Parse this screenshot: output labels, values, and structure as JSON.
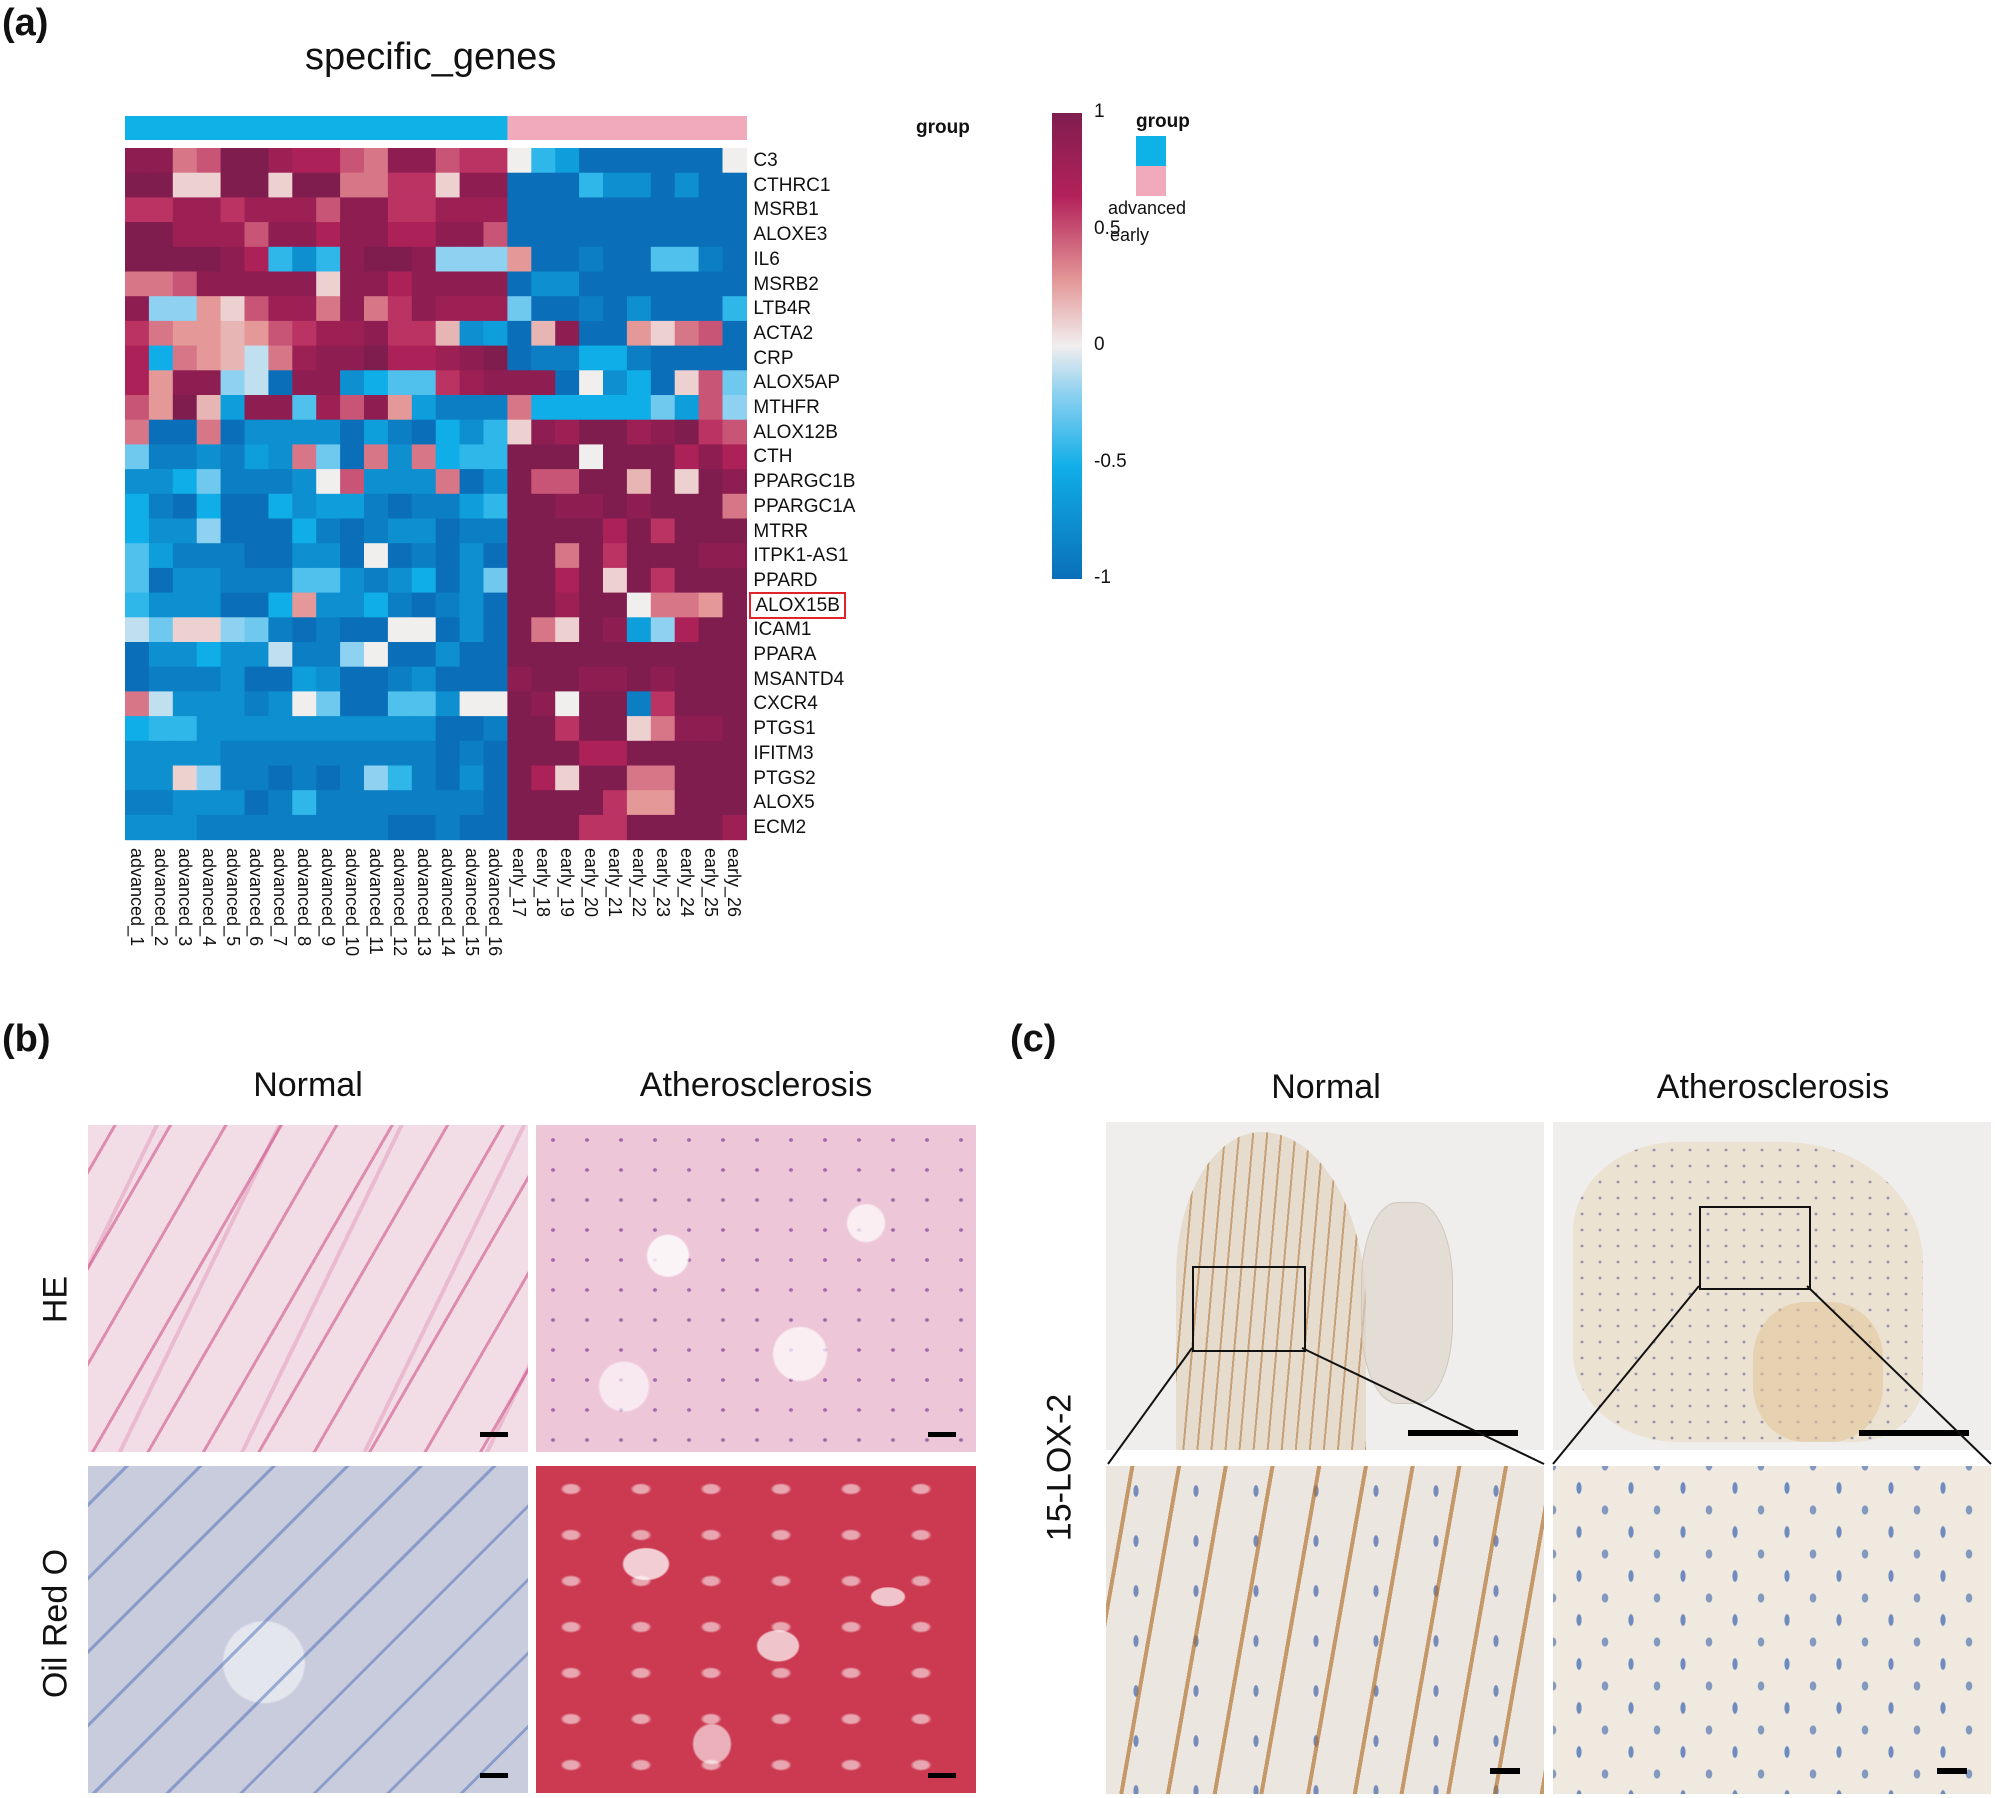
{
  "panel_labels": {
    "a": "(a)",
    "b": "(b)",
    "c": "(c)"
  },
  "heatmap": {
    "title": "specific_genes",
    "annotation_label": "group",
    "legend_title": "group",
    "legend_entries": [
      {
        "label": "advanced",
        "color": "#0fb2e6"
      },
      {
        "label": "early",
        "color": "#f0aabb"
      }
    ],
    "colorbar_ticks": [
      "1",
      "0.5",
      "0",
      "-0.5",
      "-1"
    ],
    "highlighted_gene": "ALOX15B"
  },
  "chart_data": {
    "type": "heatmap",
    "title": "specific_genes",
    "x": [
      "advanced_1",
      "advanced_2",
      "advanced_3",
      "advanced_4",
      "advanced_5",
      "advanced_6",
      "advanced_7",
      "advanced_8",
      "advanced_9",
      "advanced_10",
      "advanced_11",
      "advanced_12",
      "advanced_13",
      "advanced_14",
      "advanced_15",
      "advanced_16",
      "early_17",
      "early_18",
      "early_19",
      "early_20",
      "early_21",
      "early_22",
      "early_23",
      "early_24",
      "early_25",
      "early_26"
    ],
    "groups": [
      "advanced",
      "advanced",
      "advanced",
      "advanced",
      "advanced",
      "advanced",
      "advanced",
      "advanced",
      "advanced",
      "advanced",
      "advanced",
      "advanced",
      "advanced",
      "advanced",
      "advanced",
      "advanced",
      "early",
      "early",
      "early",
      "early",
      "early",
      "early",
      "early",
      "early",
      "early",
      "early"
    ],
    "y": [
      "C3",
      "CTHRC1",
      "MSRB1",
      "ALOXE3",
      "IL6",
      "MSRB2",
      "LTB4R",
      "ACTA2",
      "CRP",
      "ALOX5AP",
      "MTHFR",
      "ALOX12B",
      "CTH",
      "PPARGC1B",
      "PPARGC1A",
      "MTRR",
      "ITPK1-AS1",
      "PPARD",
      "ALOX15B",
      "ICAM1",
      "PPARA",
      "MSANTD4",
      "CXCR4",
      "PTGS1",
      "IFITM3",
      "PTGS2",
      "ALOX5",
      "ECM2"
    ],
    "zlim": [
      -1,
      1
    ],
    "values": [
      [
        0.9,
        0.9,
        0.4,
        0.5,
        1,
        1,
        0.8,
        0.7,
        0.7,
        0.5,
        0.4,
        0.9,
        0.9,
        0.5,
        0.6,
        0.6,
        0.0,
        -0.5,
        -0.7,
        -1,
        -1,
        -1,
        -1,
        -1,
        -1,
        0.0
      ],
      [
        1,
        1,
        0.1,
        0.1,
        1,
        1,
        0.1,
        1,
        1,
        0.4,
        0.4,
        0.6,
        0.6,
        0.1,
        0.9,
        0.9,
        -1,
        -1,
        -1,
        -0.5,
        -0.8,
        -0.8,
        -1,
        -0.8,
        -1,
        -1
      ],
      [
        0.6,
        0.6,
        0.8,
        0.8,
        0.6,
        0.8,
        0.8,
        0.8,
        0.5,
        0.9,
        0.9,
        0.6,
        0.6,
        0.8,
        0.8,
        0.8,
        -1,
        -1,
        -1,
        -1,
        -1,
        -1,
        -1,
        -1,
        -1,
        -1
      ],
      [
        1,
        1,
        0.8,
        0.8,
        0.8,
        0.5,
        0.9,
        0.9,
        0.7,
        0.9,
        0.9,
        0.7,
        0.7,
        0.9,
        0.9,
        0.5,
        -1,
        -1,
        -1,
        -1,
        -1,
        -1,
        -1,
        -1,
        -1,
        -1
      ],
      [
        1,
        1,
        1,
        1,
        0.9,
        0.7,
        -0.5,
        -0.8,
        -0.5,
        0.9,
        1,
        1,
        0.9,
        -0.2,
        -0.2,
        -0.2,
        0.3,
        -1,
        -1,
        -0.9,
        -1,
        -1,
        -0.4,
        -0.4,
        -0.9,
        -1
      ],
      [
        0.4,
        0.4,
        0.5,
        0.9,
        0.9,
        0.9,
        0.9,
        0.9,
        0.1,
        0.9,
        0.9,
        0.7,
        0.9,
        0.9,
        0.9,
        0.9,
        -1,
        -0.8,
        -0.8,
        -1,
        -1,
        -1,
        -1,
        -1,
        -1,
        -1
      ],
      [
        0.9,
        -0.2,
        -0.2,
        0.3,
        0.1,
        0.5,
        0.8,
        0.8,
        0.4,
        0.9,
        0.4,
        0.6,
        0.9,
        0.8,
        0.8,
        0.8,
        -0.3,
        -1,
        -1,
        -0.9,
        -1,
        -0.8,
        -1,
        -1,
        -1,
        -0.5
      ],
      [
        0.6,
        0.4,
        0.3,
        0.3,
        0.2,
        0.3,
        0.5,
        0.6,
        0.8,
        0.8,
        0.9,
        0.6,
        0.6,
        0.2,
        -0.8,
        -0.7,
        -1,
        0.2,
        0.9,
        -1,
        -1,
        0.3,
        0.1,
        0.4,
        0.5,
        -1
      ],
      [
        0.7,
        -0.6,
        0.4,
        0.3,
        0.2,
        -0.1,
        0.4,
        0.8,
        0.9,
        0.9,
        1,
        0.7,
        0.7,
        0.8,
        0.9,
        1,
        -1,
        -0.9,
        -0.9,
        -0.6,
        -0.6,
        -0.9,
        -1,
        -1,
        -1,
        -1
      ],
      [
        0.7,
        0.3,
        0.9,
        0.9,
        -0.2,
        -0.1,
        -1,
        0.9,
        0.9,
        -0.8,
        -0.6,
        -0.4,
        -0.4,
        0.6,
        0.8,
        0.9,
        0.9,
        0.9,
        -1,
        0.0,
        -0.8,
        -0.6,
        -1,
        0.1,
        0.5,
        -0.3
      ],
      [
        0.5,
        0.3,
        1,
        0.2,
        -0.7,
        0.9,
        0.9,
        -0.4,
        0.8,
        0.5,
        0.9,
        0.3,
        -0.7,
        -0.9,
        -0.9,
        -0.9,
        0.4,
        -0.6,
        -0.6,
        -0.6,
        -0.6,
        -0.6,
        -0.3,
        -0.7,
        0.5,
        -0.2
      ],
      [
        0.4,
        -1,
        -1,
        0.4,
        -1,
        -0.8,
        -0.8,
        -0.8,
        -0.8,
        -1,
        -0.7,
        -0.9,
        -1,
        -0.6,
        -0.8,
        -0.5,
        0.1,
        0.9,
        0.8,
        1,
        1,
        0.8,
        0.9,
        1,
        0.6,
        0.5
      ],
      [
        -0.3,
        -0.9,
        -0.9,
        -0.8,
        -0.9,
        -0.7,
        -0.8,
        0.4,
        -0.3,
        -1,
        0.4,
        -0.8,
        0.4,
        -0.6,
        -0.5,
        -0.5,
        1,
        1,
        1,
        0.0,
        1,
        1,
        1,
        0.7,
        0.9,
        0.7
      ],
      [
        -0.8,
        -0.8,
        -0.6,
        -0.3,
        -0.9,
        -0.9,
        -0.9,
        -0.8,
        0.0,
        0.5,
        -0.8,
        -0.8,
        -0.8,
        0.4,
        -1,
        -0.8,
        1,
        0.5,
        0.5,
        1,
        1,
        0.2,
        1,
        0.1,
        1,
        0.9
      ],
      [
        -0.6,
        -0.9,
        -1,
        -0.6,
        -1,
        -1,
        -0.6,
        -0.8,
        -0.7,
        -0.7,
        -0.9,
        -1,
        -0.9,
        -0.9,
        -0.7,
        -0.5,
        1,
        1,
        0.9,
        0.9,
        1,
        0.9,
        1,
        1,
        1,
        0.4
      ],
      [
        -0.6,
        -0.8,
        -0.8,
        -0.2,
        -1,
        -1,
        -1,
        -0.6,
        -0.9,
        -1,
        -0.9,
        -0.8,
        -0.8,
        -1,
        -0.9,
        -0.9,
        1,
        1,
        1,
        1,
        0.7,
        1,
        0.6,
        1,
        1,
        1
      ],
      [
        -0.4,
        -0.7,
        -0.9,
        -0.9,
        -0.9,
        -1,
        -1,
        -0.8,
        -0.8,
        -1,
        0.0,
        -1,
        -0.9,
        -1,
        -0.8,
        -1,
        1,
        1,
        0.4,
        1,
        0.6,
        1,
        1,
        1,
        0.9,
        0.9
      ],
      [
        -0.4,
        -1,
        -0.8,
        -0.8,
        -0.9,
        -0.9,
        -0.9,
        -0.4,
        -0.4,
        -0.8,
        -0.9,
        -0.8,
        -0.6,
        -1,
        -0.8,
        -0.3,
        1,
        1,
        0.7,
        1,
        0.1,
        1,
        0.6,
        1,
        1,
        1
      ],
      [
        -0.5,
        -0.8,
        -0.8,
        -0.8,
        -1,
        -1,
        -0.6,
        0.3,
        -0.8,
        -0.8,
        -0.6,
        -0.9,
        -1,
        -0.9,
        -0.8,
        -1,
        1,
        1,
        0.8,
        1,
        1,
        0.0,
        0.4,
        0.4,
        0.3,
        1
      ],
      [
        -0.1,
        -0.3,
        0.1,
        0.1,
        -0.2,
        -0.3,
        -0.9,
        -1,
        -0.9,
        -1,
        -1,
        0.0,
        0.0,
        -1,
        -0.8,
        -1,
        1,
        0.4,
        0.1,
        1,
        0.9,
        -0.7,
        -0.2,
        0.7,
        1,
        1
      ],
      [
        -1,
        -0.8,
        -0.8,
        -0.6,
        -0.8,
        -0.8,
        -0.1,
        -0.9,
        -0.9,
        -0.2,
        0.0,
        -1,
        -1,
        -0.8,
        -1,
        -1,
        1,
        1,
        1,
        1,
        1,
        1,
        1,
        1,
        1,
        1
      ],
      [
        -1,
        -0.9,
        -0.9,
        -0.9,
        -0.8,
        -1,
        -1,
        -0.7,
        -0.8,
        -1,
        -1,
        -0.9,
        -0.8,
        -1,
        -1,
        -1,
        0.9,
        1,
        1,
        0.9,
        0.9,
        1,
        0.9,
        1,
        1,
        1
      ],
      [
        0.4,
        -0.1,
        -0.8,
        -0.8,
        -0.8,
        -0.9,
        -0.8,
        0.0,
        -0.3,
        -1,
        -1,
        -0.4,
        -0.4,
        -0.8,
        0.0,
        0.0,
        1,
        0.9,
        0.0,
        1,
        1,
        -0.9,
        0.6,
        1,
        1,
        1
      ],
      [
        -0.6,
        -0.5,
        -0.5,
        -0.8,
        -0.8,
        -0.8,
        -0.8,
        -0.8,
        -0.8,
        -0.8,
        -0.8,
        -0.8,
        -0.8,
        -1,
        -1,
        -0.9,
        1,
        1,
        0.6,
        1,
        1,
        0.1,
        0.4,
        0.9,
        0.9,
        1
      ],
      [
        -0.8,
        -0.8,
        -0.8,
        -0.8,
        -0.9,
        -0.9,
        -0.9,
        -0.9,
        -0.9,
        -0.9,
        -0.9,
        -0.9,
        -0.9,
        -1,
        -0.9,
        -1,
        1,
        1,
        1,
        0.7,
        0.7,
        1,
        1,
        1,
        1,
        1
      ],
      [
        -0.8,
        -0.8,
        0.1,
        -0.2,
        -0.9,
        -0.9,
        -1,
        -0.9,
        -1,
        -0.9,
        -0.2,
        -0.5,
        -0.9,
        -1,
        -0.8,
        -1,
        1,
        0.7,
        0.1,
        1,
        1,
        0.4,
        0.4,
        1,
        1,
        1
      ],
      [
        -0.9,
        -0.9,
        -0.8,
        -0.8,
        -0.8,
        -1,
        -0.9,
        -0.5,
        -0.9,
        -0.9,
        -0.9,
        -0.9,
        -0.9,
        -0.9,
        -0.9,
        -1,
        1,
        1,
        1,
        1,
        0.6,
        0.3,
        0.3,
        1,
        1,
        1
      ],
      [
        -0.8,
        -0.8,
        -0.8,
        -0.9,
        -0.9,
        -0.9,
        -0.9,
        -0.9,
        -0.9,
        -0.9,
        -0.9,
        -1,
        -1,
        -0.9,
        -1,
        -1,
        1,
        1,
        1,
        0.6,
        0.6,
        1,
        1,
        1,
        1,
        0.8
      ]
    ]
  },
  "panel_b": {
    "col_titles": [
      "Normal",
      "Atherosclerosis"
    ],
    "row_titles": [
      "HE",
      "Oil Red O"
    ]
  },
  "panel_c": {
    "col_titles": [
      "Normal",
      "Atherosclerosis"
    ],
    "row_title": "15-LOX-2"
  }
}
